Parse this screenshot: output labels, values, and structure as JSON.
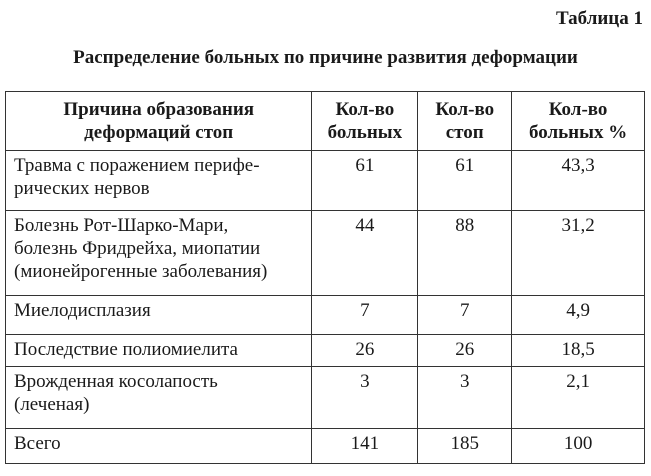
{
  "header": {
    "label": "Таблица 1",
    "title": "Распределение больных по причине развития деформации"
  },
  "table": {
    "columns": [
      "Причина  образования\nдеформаций стоп",
      "Кол-во\nбольных",
      "Кол-во\nстоп",
      "Кол-во\nбольных %"
    ],
    "rows": [
      [
        "Травма с поражением перифе-\nрических нервов",
        "61",
        "61",
        "43,3"
      ],
      [
        "Болезнь Рот-Шарко-Мари,\nболезнь Фридрейха, миопатии\n(мионейрогенные заболевания)",
        "44",
        "88",
        "31,2"
      ],
      [
        "Миелодисплазия",
        "7",
        "7",
        "4,9"
      ],
      [
        "Последствие полиомиелита",
        "26",
        "26",
        "18,5"
      ],
      [
        "Врожденная косолапость\n(леченая)",
        "3",
        "3",
        "2,1"
      ],
      [
        "Всего",
        "141",
        "185",
        "100"
      ]
    ]
  }
}
